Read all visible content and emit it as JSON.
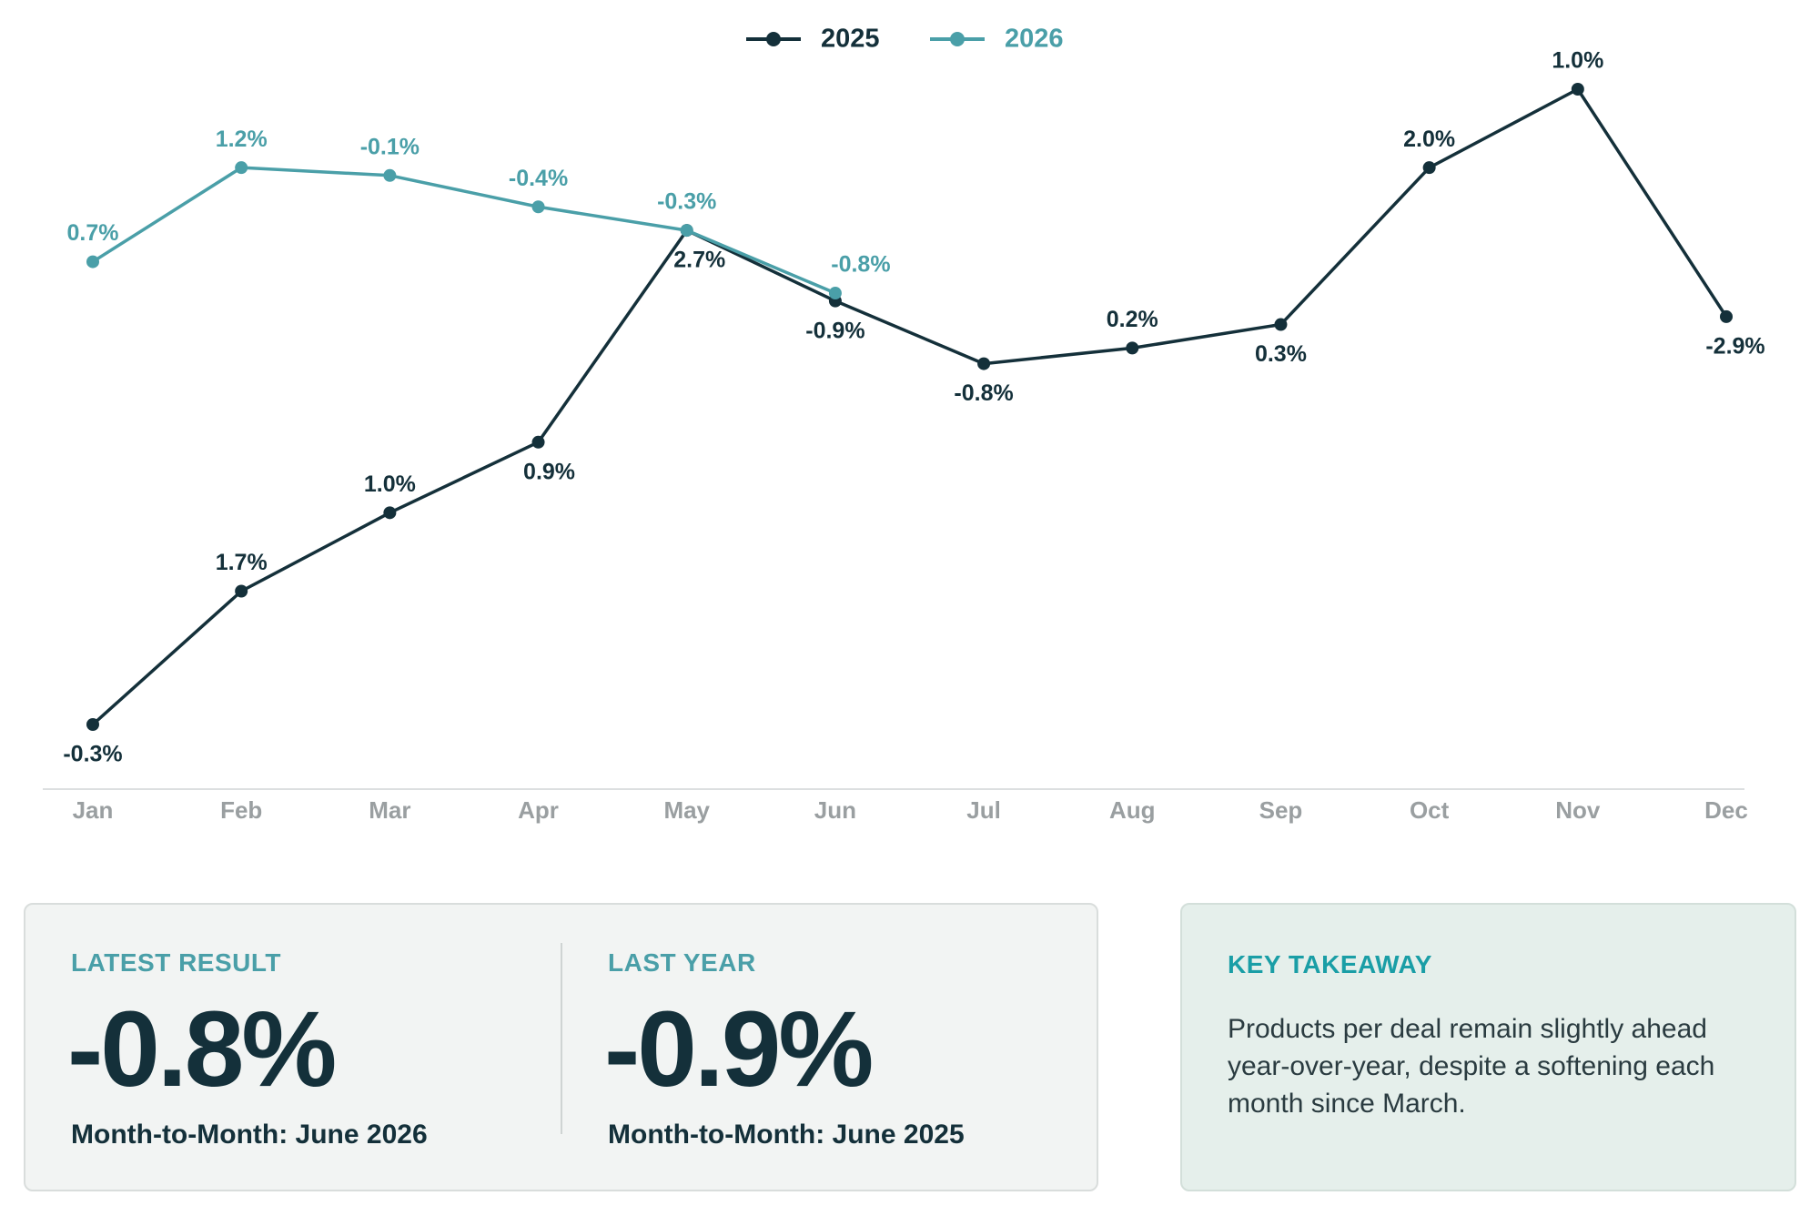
{
  "chart_data": {
    "type": "line",
    "categories": [
      "Jan",
      "Feb",
      "Mar",
      "Apr",
      "May",
      "Jun",
      "Jul",
      "Aug",
      "Sep",
      "Oct",
      "Nov",
      "Dec"
    ],
    "series": [
      {
        "name": "2025",
        "color": "#14303a",
        "values": [
          -0.3,
          1.7,
          1.0,
          0.9,
          2.7,
          -0.9,
          -0.8,
          0.2,
          0.3,
          2.0,
          1.0,
          -2.9
        ],
        "value_labels": [
          "-0.3%",
          "1.7%",
          "1.0%",
          "0.9%",
          "2.7%",
          "-0.9%",
          "-0.8%",
          "0.2%",
          "0.3%",
          "2.0%",
          "1.0%",
          "-2.9%"
        ]
      },
      {
        "name": "2026",
        "color": "#4a9fa8",
        "values": [
          0.7,
          1.2,
          -0.1,
          -0.4,
          -0.3,
          -0.8,
          null,
          null,
          null,
          null,
          null,
          null
        ],
        "value_labels": [
          "0.7%",
          "1.2%",
          "-0.1%",
          "-0.4%",
          "-0.3%",
          "-0.8%",
          null,
          null,
          null,
          null,
          null,
          null
        ]
      }
    ]
  },
  "latest_result": {
    "label": "LATEST RESULT",
    "value": "-0.8%",
    "caption": "Month-to-Month: June 2026"
  },
  "last_year": {
    "label": "LAST YEAR",
    "value": "-0.9%",
    "caption": "Month-to-Month: June 2025"
  },
  "key_takeaway": {
    "title": "KEY TAKEAWAY",
    "text": "Products per deal remain slightly ahead year-over-year, despite a softening each month since March."
  }
}
